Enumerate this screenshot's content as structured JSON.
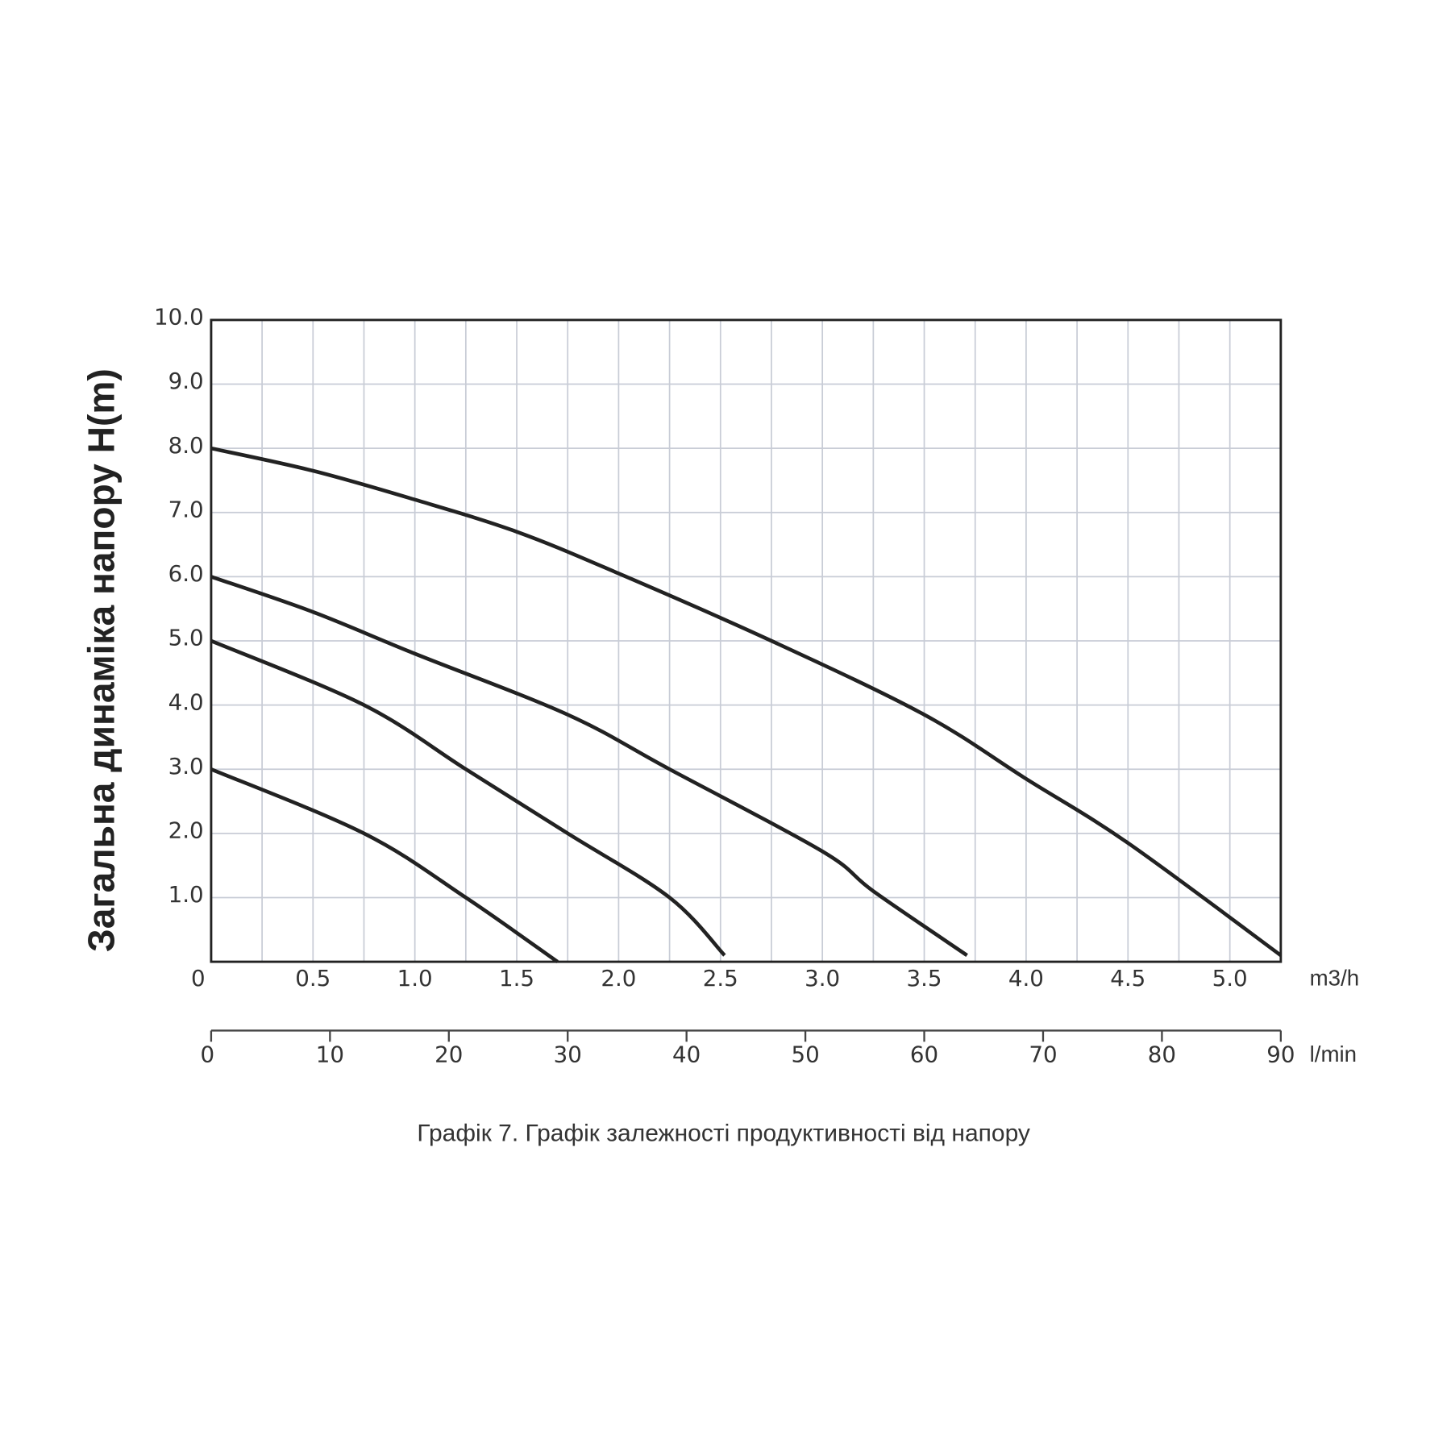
{
  "chart_data": {
    "type": "line",
    "y_label": "Загальна динаміка напору H(m)",
    "x_label": "m3/h",
    "x2_label": "l/min",
    "caption": "Графік 7. Графік залежності продуктивності від напору",
    "xlim": [
      0,
      5.25
    ],
    "xticks": [
      0,
      0.5,
      {
        "value": 1,
        "label": "1.0"
      },
      1.5,
      {
        "value": 2,
        "label": "2.0"
      },
      2.5,
      {
        "value": 3,
        "label": "3.0"
      },
      3.5,
      {
        "value": 4,
        "label": "4.0"
      },
      4.5,
      {
        "value": 5,
        "label": "5.0"
      }
    ],
    "xminor": [
      0.25,
      0.75,
      1.25,
      1.75,
      2.25,
      2.75,
      3.25,
      3.75,
      4.25,
      4.75
    ],
    "ylim": [
      0,
      10
    ],
    "yticks": [
      {
        "value": 1,
        "label": "1.0"
      },
      {
        "value": 2,
        "label": "2.0"
      },
      {
        "value": 3,
        "label": "3.0"
      },
      {
        "value": 4,
        "label": "4.0"
      },
      {
        "value": 5,
        "label": "5.0"
      },
      {
        "value": 6,
        "label": "6.0"
      },
      {
        "value": 7,
        "label": "7.0"
      },
      {
        "value": 8,
        "label": "8.0"
      },
      {
        "value": 9,
        "label": "9.0"
      },
      {
        "value": 10,
        "label": "10.0"
      }
    ],
    "x2lim": [
      0,
      90
    ],
    "x2ticks": [
      0,
      10,
      20,
      30,
      40,
      50,
      60,
      70,
      80,
      90
    ],
    "grid": true,
    "series": [
      {
        "color": "#222222",
        "x": [
          0,
          0.5,
          1.0,
          1.5,
          2.0,
          2.75,
          3.5,
          4.0,
          4.5,
          5.25
        ],
        "values": [
          8.0,
          7.65,
          7.2,
          6.7,
          6.05,
          5.0,
          3.85,
          2.85,
          1.85,
          0.1
        ]
      },
      {
        "color": "#222222",
        "x": [
          0,
          0.5,
          1.0,
          1.75,
          2.25,
          3.0,
          3.25,
          3.71
        ],
        "values": [
          6.0,
          5.45,
          4.8,
          3.85,
          3.0,
          1.72,
          1.1,
          0.1
        ]
      },
      {
        "color": "#222222",
        "x": [
          0,
          0.75,
          1.25,
          1.75,
          2.25,
          2.52
        ],
        "values": [
          5.0,
          4.0,
          3.0,
          2.0,
          1.0,
          0.1
        ]
      },
      {
        "color": "#222222",
        "x": [
          0,
          0.75,
          1.25,
          1.7
        ],
        "values": [
          3.0,
          2.0,
          1.0,
          0
        ]
      }
    ]
  }
}
